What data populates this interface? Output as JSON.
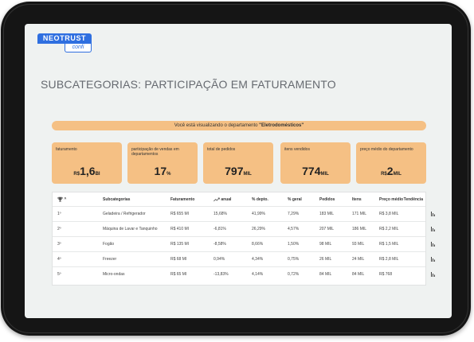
{
  "logo": {
    "brand": "NEOTRUST",
    "sub": "confi"
  },
  "page": {
    "title": "SUBCATEGORIAS: PARTICIPAÇÃO EM FATURAMENTO"
  },
  "banner": {
    "prefix": "Você está visualizando o departamento ",
    "department": "\"Eletrodomésticos\""
  },
  "cards": [
    {
      "label": "faturamento",
      "prefix": "R$",
      "value": "1,6",
      "suffix": "BI"
    },
    {
      "label": "participação de vendas em departamentos",
      "prefix": "",
      "value": "17",
      "suffix": "%"
    },
    {
      "label": "total de pedidos",
      "prefix": "",
      "value": "797",
      "suffix": "MIL"
    },
    {
      "label": "itens vendidos",
      "prefix": "",
      "value": "774",
      "suffix": "MIL"
    },
    {
      "label": "preço médio do departamento",
      "prefix": "R$",
      "value": "2",
      "suffix": "MIL"
    }
  ],
  "table": {
    "rank_suffix": "^",
    "headers": {
      "subcategory": "Subcategorias",
      "revenue": "Faturamento",
      "annual": "anual",
      "dept_pct": "% depto.",
      "general_pct": "% geral",
      "orders": "Pedidos",
      "items": "Itens",
      "avg_price": "Preço médio",
      "trend": "Tendência"
    },
    "rows": [
      {
        "rank": "1º",
        "subcategory": "Geladeira / Refrigerador",
        "revenue": "R$ 655 MI",
        "annual": "15,68%",
        "dept_pct": "41,99%",
        "general_pct": "7,29%",
        "orders": "183 MIL",
        "items": "171 MIL",
        "avg_price": "R$ 3,8 MIL"
      },
      {
        "rank": "2º",
        "subcategory": "Máquina de Lavar e Tanquinho",
        "revenue": "R$ 410 MI",
        "annual": "-6,81%",
        "dept_pct": "26,29%",
        "general_pct": "4,57%",
        "orders": "207 MIL",
        "items": "186 MIL",
        "avg_price": "R$ 2,2 MIL"
      },
      {
        "rank": "3º",
        "subcategory": "Fogão",
        "revenue": "R$ 135 MI",
        "annual": "-8,58%",
        "dept_pct": "8,66%",
        "general_pct": "1,50%",
        "orders": "98 MIL",
        "items": "93 MIL",
        "avg_price": "R$ 1,5 MIL"
      },
      {
        "rank": "4º",
        "subcategory": "Freezer",
        "revenue": "R$ 68 MI",
        "annual": "0,94%",
        "dept_pct": "4,34%",
        "general_pct": "0,75%",
        "orders": "26 MIL",
        "items": "24 MIL",
        "avg_price": "R$ 2,8 MIL"
      },
      {
        "rank": "5º",
        "subcategory": "Micro-ondas",
        "revenue": "R$ 65 MI",
        "annual": "-13,83%",
        "dept_pct": "4,14%",
        "general_pct": "0,72%",
        "orders": "84 MIL",
        "items": "84 MIL",
        "avg_price": "R$ 768"
      }
    ]
  },
  "colors": {
    "accent": "#f5c084",
    "brand": "#2f6fe0",
    "screen_bg": "#eff2f1"
  },
  "icons": {
    "rank": "trophy-icon",
    "annual": "trend-up-icon",
    "trend": "bar-chart-icon"
  }
}
